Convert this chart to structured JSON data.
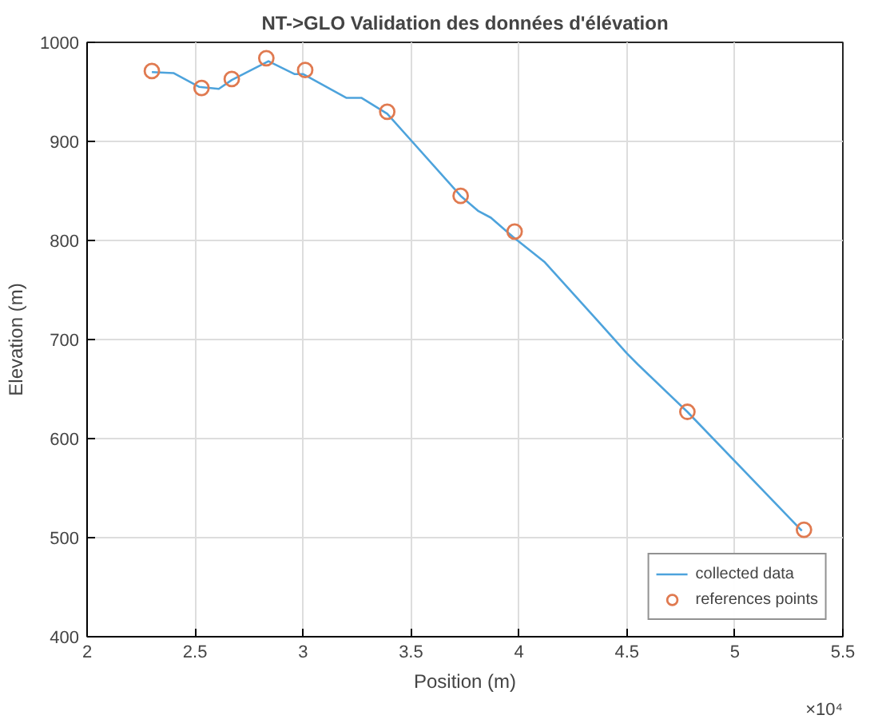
{
  "chart_data": {
    "type": "line",
    "title": "NT->GLO Validation des données d'élévation",
    "xlabel": "Position (m)",
    "ylabel": "Elevation (m)",
    "series": [
      {
        "name": "collected data",
        "color": "#4da3dc",
        "marker": "none",
        "x": [
          2.3,
          2.4,
          2.52,
          2.61,
          2.67,
          2.84,
          2.96,
          3.0,
          3.2,
          3.27,
          3.39,
          3.73,
          3.81,
          3.87,
          3.97,
          4.12,
          4.36,
          4.5,
          4.55,
          4.78,
          5.31
        ],
        "values": [
          970,
          969,
          955,
          953,
          962,
          981,
          968,
          968,
          944,
          944,
          928,
          845,
          830,
          823,
          804,
          778,
          720,
          686,
          675,
          627,
          507
        ]
      },
      {
        "name": "references points",
        "type": "scatter",
        "color": "#e07a50",
        "marker": "circle",
        "x": [
          2.3,
          2.53,
          2.67,
          2.83,
          3.01,
          3.39,
          3.73,
          3.98,
          4.78,
          5.32
        ],
        "values": [
          971,
          954,
          963,
          984,
          972,
          930,
          845,
          809,
          627,
          508
        ]
      }
    ],
    "xlim": [
      2,
      5.5
    ],
    "ylim": [
      400,
      1000
    ],
    "xticks": [
      2,
      2.5,
      3,
      3.5,
      4,
      4.5,
      5,
      5.5
    ],
    "yticks": [
      400,
      500,
      600,
      700,
      800,
      900,
      1000
    ],
    "annotations": [
      "×10⁴"
    ],
    "grid": true,
    "legend": "bottom right"
  }
}
